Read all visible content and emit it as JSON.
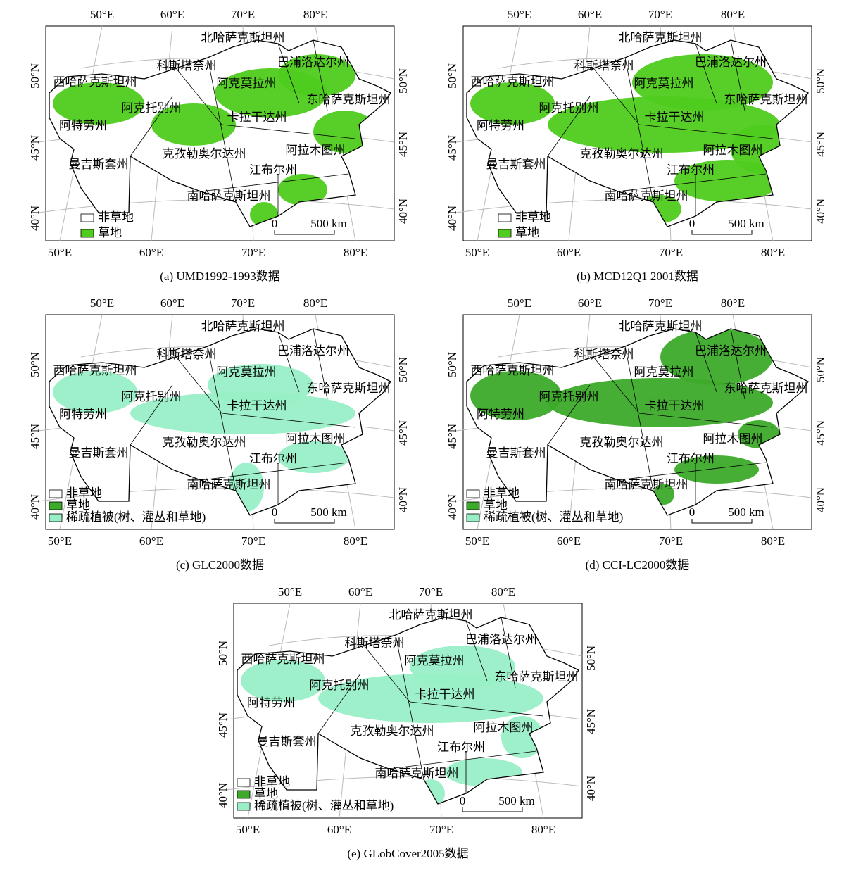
{
  "graticule": {
    "lon_labels": [
      "50°E",
      "60°E",
      "70°E",
      "80°E"
    ],
    "lat_labels": [
      "50°N",
      "45°N",
      "40°N"
    ]
  },
  "regions": [
    "北哈萨克斯坦州",
    "科斯塔奈州",
    "巴浦洛达尔州",
    "西哈萨克斯坦州",
    "阿克莫拉州",
    "东哈萨克斯坦州",
    "阿克托别州",
    "卡拉干达州",
    "阿特劳州",
    "克孜勒奥尔达州",
    "阿拉木图州",
    "曼吉斯套州",
    "江布尔州",
    "南哈萨克斯坦州"
  ],
  "scale_bar": {
    "start": "0",
    "end": "500 km"
  },
  "panels": [
    {
      "caption": "(a) UMD1992-1993数据",
      "legend": [
        {
          "label": "非草地",
          "color": "#ffffff"
        },
        {
          "label": "草地",
          "color": "#4fcc1e"
        }
      ]
    },
    {
      "caption": "(b) MCD12Q1 2001数据",
      "legend": [
        {
          "label": "非草地",
          "color": "#ffffff"
        },
        {
          "label": "草地",
          "color": "#4fcc1e"
        }
      ]
    },
    {
      "caption": "(c) GLC2000数据",
      "legend": [
        {
          "label": "非草地",
          "color": "#ffffff"
        },
        {
          "label": "草地",
          "color": "#3daa2a"
        },
        {
          "label": "稀疏植被(树、灌丛和草地)",
          "color": "#98efc6"
        }
      ]
    },
    {
      "caption": "(d) CCI-LC2000数据",
      "legend": [
        {
          "label": "非草地",
          "color": "#ffffff"
        },
        {
          "label": "草地",
          "color": "#3daa2a"
        },
        {
          "label": "稀疏植被(树、灌丛和草地)",
          "color": "#98efc6"
        }
      ]
    },
    {
      "caption": "(e) GLobCover2005数据",
      "legend": [
        {
          "label": "非草地",
          "color": "#ffffff"
        },
        {
          "label": "草地",
          "color": "#3daa2a"
        },
        {
          "label": "稀疏植被(树、灌丛和草地)",
          "color": "#98efc6"
        }
      ]
    }
  ]
}
